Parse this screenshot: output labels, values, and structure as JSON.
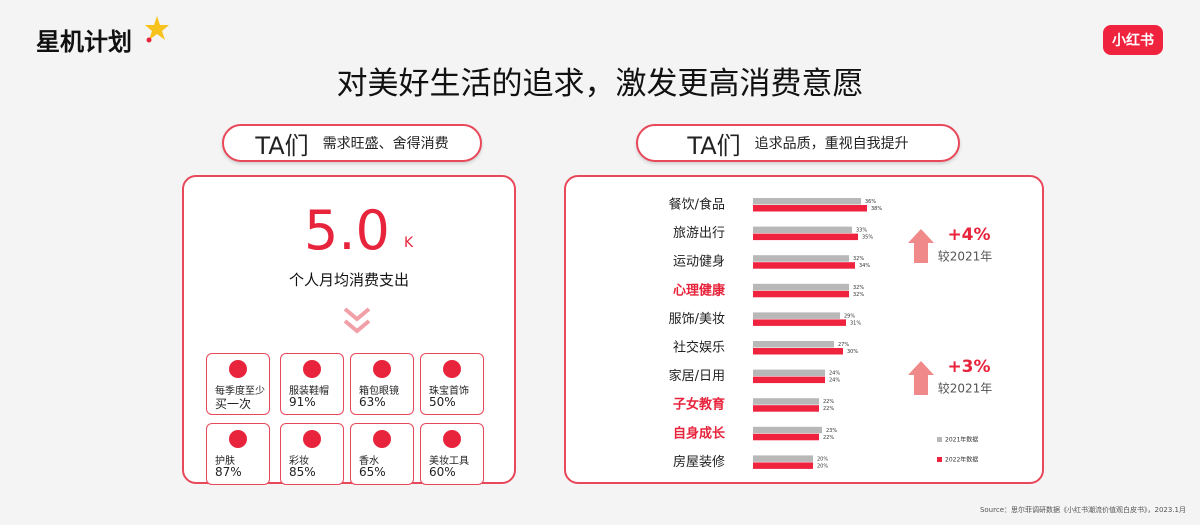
{
  "header": {
    "logo": "星机计划",
    "title": "对美好生活的追求，激发更高消费意愿",
    "brand": "小红书"
  },
  "left_panel": {
    "tag": "TA们",
    "tagline": "需求旺盛、舍得消费",
    "big_number": "5.0",
    "unit": "K",
    "caption": "个人月均消费支出",
    "items": [
      {
        "label": "每季度至少",
        "value": "买一次"
      },
      {
        "label": "服装鞋帽",
        "value": "91%"
      },
      {
        "label": "箱包眼镜",
        "value": "63%"
      },
      {
        "label": "珠宝首饰",
        "value": "50%"
      },
      {
        "label": "护肤",
        "value": "87%"
      },
      {
        "label": "彩妆",
        "value": "85%"
      },
      {
        "label": "香水",
        "value": "65%"
      },
      {
        "label": "美妆工具",
        "value": "60%"
      }
    ]
  },
  "right_panel": {
    "tag": "TA们",
    "tagline": "追求品质，重视自我提升"
  },
  "chart_data": {
    "type": "hbar",
    "categories": [
      "餐饮/食品",
      "旅游出行",
      "运动健身",
      "心理健康",
      "服饰/美妆",
      "社交娱乐",
      "家居/日用",
      "子女教育",
      "自身成长",
      "房屋装修"
    ],
    "highlighted": [
      false,
      false,
      false,
      true,
      false,
      false,
      false,
      true,
      true,
      false
    ],
    "highlight_color": "#e8243c",
    "series": [
      {
        "name": "2021年数据",
        "color": "#b8b8b8",
        "values": [
          36,
          33,
          32,
          32,
          29,
          27,
          24,
          22,
          23,
          20
        ],
        "value_labels": [
          "36%",
          "33%",
          "32%",
          "32%",
          "29%",
          "27%",
          "24%",
          "22%",
          "23%",
          "20%"
        ]
      },
      {
        "name": "2022年数据",
        "color": "#f0233f",
        "values": [
          38,
          35,
          34,
          32,
          31,
          30,
          24,
          22,
          22,
          20
        ],
        "value_labels": [
          "38%",
          "35%",
          "34%",
          "32%",
          "31%",
          "30%",
          "24%",
          "22%",
          "22%",
          "20%"
        ]
      }
    ],
    "annotations": [
      {
        "text": "+4%",
        "sub": "较2021年"
      },
      {
        "text": "+3%",
        "sub": "较2021年"
      }
    ]
  },
  "source": "Source：思尔菲调研数据《小红书潮流价值观白皮书》，2023.1月"
}
